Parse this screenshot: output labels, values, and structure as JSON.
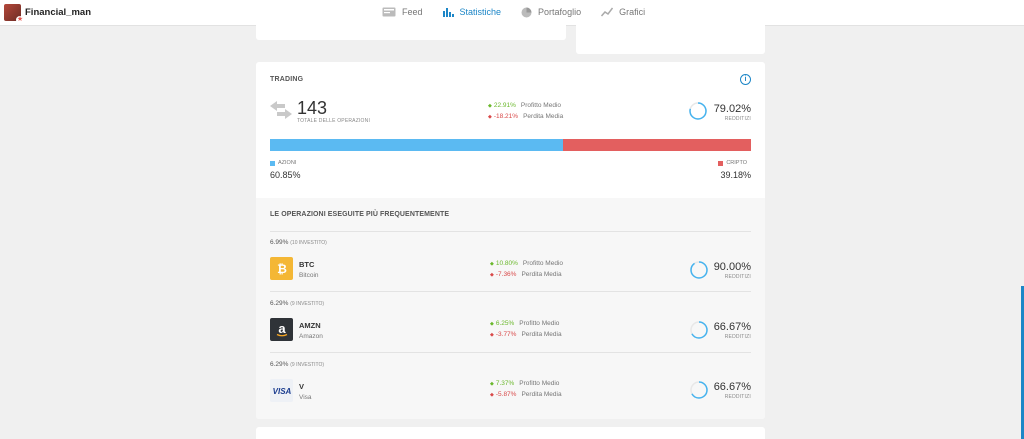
{
  "header": {
    "username": "Financial_man",
    "tabs": [
      {
        "label": "Feed",
        "icon": "feed-icon",
        "active": false
      },
      {
        "label": "Statistiche",
        "icon": "bar-chart-icon",
        "active": true
      },
      {
        "label": "Portafoglio",
        "icon": "pie-chart-icon",
        "active": false
      },
      {
        "label": "Grafici",
        "icon": "line-chart-icon",
        "active": false
      }
    ]
  },
  "trading": {
    "title": "TRADING",
    "total_trades": "143",
    "total_trades_label": "TOTALE DELLE OPERAZIONI",
    "avg_profit": "22.91%",
    "avg_profit_label": "Profitto Medio",
    "avg_loss": "-18.21%",
    "avg_loss_label": "Perdita Media",
    "profitability": "79.02%",
    "profitability_fraction": 0.7902,
    "profitability_label": "REDDITIZI",
    "split": [
      {
        "label": "AZIONI",
        "value": "60.85%",
        "fraction": 0.6085,
        "color": "#5bbaf2"
      },
      {
        "label": "CRIPTO",
        "value": "39.18%",
        "fraction": 0.3918,
        "color": "#e35f5f"
      }
    ]
  },
  "frequent": {
    "title": "LE OPERAZIONI ESEGUITE PIÙ FREQUENTEMENTE",
    "items": [
      {
        "share": "6.99%",
        "invested": "(10 INVESTITO)",
        "symbol": "BTC",
        "name": "Bitcoin",
        "avg_profit": "10.80%",
        "avg_loss": "-7.36%",
        "profit_label": "Profitto Medio",
        "loss_label": "Perdita Media",
        "profitability": "90.00%",
        "profitability_fraction": 0.9,
        "profitability_label": "REDDITIZI"
      },
      {
        "share": "6.29%",
        "invested": "(9 INVESTITO)",
        "symbol": "AMZN",
        "name": "Amazon",
        "avg_profit": "6.25%",
        "avg_loss": "-3.77%",
        "profit_label": "Profitto Medio",
        "loss_label": "Perdita Media",
        "profitability": "66.67%",
        "profitability_fraction": 0.6667,
        "profitability_label": "REDDITIZI"
      },
      {
        "share": "6.29%",
        "invested": "(9 INVESTITO)",
        "symbol": "V",
        "name": "Visa",
        "avg_profit": "7.37%",
        "avg_loss": "-5.87%",
        "profit_label": "Profitto Medio",
        "loss_label": "Perdita Media",
        "profitability": "66.67%",
        "profitability_fraction": 0.6667,
        "profitability_label": "REDDITIZI"
      }
    ]
  },
  "colors": {
    "accent": "#1c86c7",
    "gain": "#6bb82c",
    "loss": "#d94a4a"
  }
}
